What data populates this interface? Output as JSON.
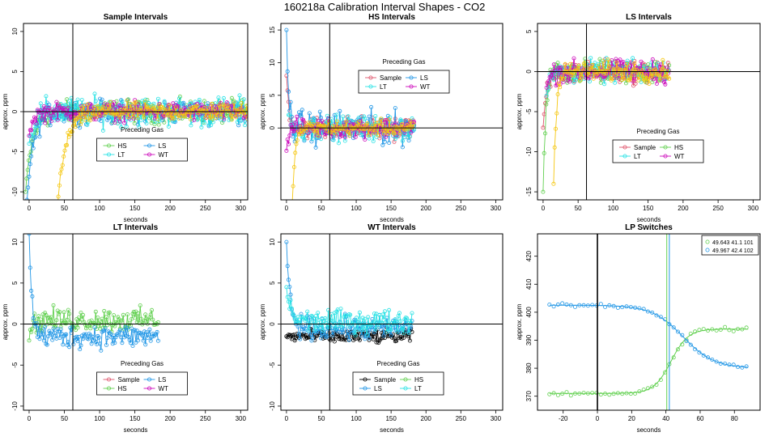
{
  "title": "160218a   Calibration Interval Shapes - CO2",
  "colors": {
    "red": "#DF536B",
    "green": "#61D04F",
    "blue": "#2297E6",
    "cyan": "#28E2E5",
    "magenta": "#CD0BBC",
    "gold": "#F5C710",
    "black": "#000000"
  },
  "chart_data": [
    {
      "type": "line",
      "title": "Sample Intervals",
      "xlabel": "seconds",
      "ylabel": "approx. ppm",
      "xlim": [
        -8,
        310
      ],
      "ylim": [
        -11,
        11
      ],
      "xticks": [
        0,
        50,
        100,
        150,
        200,
        250,
        300
      ],
      "yticks": [
        -10,
        -5,
        0,
        5,
        10
      ],
      "vline": 62,
      "hline": 0,
      "legend": {
        "title": "Preceding Gas",
        "position": "bottom-center",
        "entries": [
          "HS",
          "LS",
          "LT",
          "WT"
        ]
      },
      "series": [
        {
          "name": "HS",
          "color": "green",
          "shape": "settle",
          "start": -5,
          "end": 310,
          "from": -10,
          "tau": 10,
          "noise": 1.0
        },
        {
          "name": "LS",
          "color": "blue",
          "shape": "settle",
          "start": -3,
          "end": 310,
          "from": -11,
          "tau": 9,
          "noise": 1.0
        },
        {
          "name": "LT",
          "color": "cyan",
          "shape": "settle",
          "start": 0,
          "end": 310,
          "from": -4,
          "tau": 8,
          "noise": 1.3
        },
        {
          "name": "WT",
          "color": "magenta",
          "shape": "settle",
          "start": 0,
          "end": 310,
          "from": -3,
          "tau": 6,
          "noise": 0.8
        },
        {
          "name": "",
          "color": "gold",
          "shape": "settle",
          "start": 40,
          "end": 310,
          "from": -12,
          "tau": 12,
          "noise": 0.8
        }
      ]
    },
    {
      "type": "line",
      "title": "HS Intervals",
      "xlabel": "seconds",
      "ylabel": "approx. ppm",
      "xlim": [
        -8,
        310
      ],
      "ylim": [
        -11,
        16
      ],
      "xticks": [
        0,
        50,
        100,
        150,
        200,
        250,
        300
      ],
      "yticks": [
        0,
        5,
        10,
        15
      ],
      "vline": 62,
      "hline": 0,
      "legend": {
        "title": "Preceding Gas",
        "position": "top-center",
        "entries": [
          "Sample",
          "LS",
          "LT",
          "WT"
        ]
      },
      "series": [
        {
          "name": "Sample",
          "color": "red",
          "shape": "drop",
          "start": 0,
          "end": 183,
          "from": 8,
          "tau": 4,
          "noise": 1.2
        },
        {
          "name": "LS",
          "color": "blue",
          "shape": "drop",
          "start": 0,
          "end": 183,
          "from": 15,
          "tau": 3,
          "noise": 1.8
        },
        {
          "name": "LT",
          "color": "cyan",
          "shape": "drop",
          "start": 3,
          "end": 183,
          "from": 2,
          "tau": 3,
          "noise": 1.3
        },
        {
          "name": "WT",
          "color": "magenta",
          "shape": "settle",
          "start": 0,
          "end": 183,
          "from": -3.5,
          "tau": 3,
          "noise": 1.0
        },
        {
          "name": "",
          "color": "gold",
          "shape": "settle",
          "start": 8,
          "end": 183,
          "from": -12,
          "tau": 4,
          "noise": 0.8
        }
      ]
    },
    {
      "type": "line",
      "title": "LS Intervals",
      "xlabel": "seconds",
      "ylabel": "approx. ppm",
      "xlim": [
        -8,
        310
      ],
      "ylim": [
        -16,
        6
      ],
      "xticks": [
        0,
        50,
        100,
        150,
        200,
        250,
        300
      ],
      "yticks": [
        -15,
        -10,
        -5,
        0,
        5
      ],
      "vline": 62,
      "hline": 0,
      "legend": {
        "title": "Preceding Gas",
        "position": "bottom-right",
        "entries": [
          "Sample",
          "HS",
          "LT",
          "WT"
        ]
      },
      "series": [
        {
          "name": "Sample",
          "color": "red",
          "shape": "settle",
          "start": 0,
          "end": 180,
          "from": -7,
          "tau": 6,
          "noise": 1.0
        },
        {
          "name": "HS",
          "color": "green",
          "shape": "settle",
          "start": 0,
          "end": 180,
          "from": -15,
          "tau": 4,
          "noise": 1.0
        },
        {
          "name": "LT",
          "color": "cyan",
          "shape": "settle",
          "start": 5,
          "end": 180,
          "from": -3,
          "tau": 5,
          "noise": 1.0
        },
        {
          "name": "WT",
          "color": "magenta",
          "shape": "settle",
          "start": 5,
          "end": 180,
          "from": -2,
          "tau": 5,
          "noise": 1.0
        },
        {
          "name": "",
          "color": "gold",
          "shape": "settle",
          "start": 15,
          "end": 180,
          "from": -14,
          "tau": 4,
          "noise": 0.9
        }
      ]
    },
    {
      "type": "line",
      "title": "LT Intervals",
      "xlabel": "seconds",
      "ylabel": "approx. ppm",
      "xlim": [
        -8,
        310
      ],
      "ylim": [
        -10.5,
        11
      ],
      "xticks": [
        0,
        50,
        100,
        150,
        200,
        250,
        300
      ],
      "yticks": [
        -10,
        -5,
        0,
        5,
        10
      ],
      "vline": 62,
      "hline": 0,
      "legend": {
        "title": "Preceding Gas",
        "position": "bottom-center",
        "entries": [
          "Sample",
          "LS",
          "HS",
          "WT"
        ]
      },
      "series": [
        {
          "name": "HS",
          "color": "green",
          "shape": "settle",
          "start": 0,
          "end": 183,
          "from": -2,
          "tau": 4,
          "noise": 1.0,
          "level": 0.5
        },
        {
          "name": "LS",
          "color": "blue",
          "shape": "drop",
          "start": 0,
          "end": 183,
          "from": 11,
          "tau": 4,
          "noise": 1.0,
          "level": -1.5
        }
      ]
    },
    {
      "type": "line",
      "title": "WT Intervals",
      "xlabel": "seconds",
      "ylabel": "approx. ppm",
      "xlim": [
        -8,
        310
      ],
      "ylim": [
        -10.5,
        11
      ],
      "xticks": [
        0,
        50,
        100,
        150,
        200,
        250,
        300
      ],
      "yticks": [
        -10,
        -5,
        0,
        5,
        10
      ],
      "vline": 62,
      "hline": 0,
      "legend": {
        "title": "Preceding Gas",
        "position": "bottom-center",
        "entries": [
          "Sample",
          "HS",
          "LS",
          "LT"
        ]
      },
      "series": [
        {
          "name": "Sample",
          "color": "black",
          "shape": "settle",
          "start": 0,
          "end": 180,
          "from": -1.5,
          "tau": 10,
          "noise": 0.6,
          "level": -1.5
        },
        {
          "name": "LS",
          "color": "blue",
          "shape": "drop",
          "start": 0,
          "end": 180,
          "from": 10,
          "tau": 5,
          "noise": 1.0,
          "level": -0.5
        },
        {
          "name": "LT",
          "color": "cyan",
          "shape": "drop",
          "start": 0,
          "end": 180,
          "from": 4.5,
          "tau": 6,
          "noise": 1.0,
          "level": 0.3
        }
      ]
    },
    {
      "type": "scatter",
      "title": "LP Switches",
      "xlabel": "seconds",
      "ylabel": "approx. ppm",
      "xlim": [
        -35,
        95
      ],
      "ylim": [
        365,
        428
      ],
      "xticks": [
        -20,
        0,
        20,
        40,
        60,
        80
      ],
      "yticks": [
        370,
        380,
        390,
        400,
        410,
        420
      ],
      "vline": 0,
      "vlines": [
        {
          "x": 40.5,
          "color": "green"
        },
        {
          "x": 42,
          "color": "blue"
        }
      ],
      "legend": {
        "position": "top-right",
        "entries": [
          "49.643 41.1 101",
          "49.967 42.4 102"
        ]
      },
      "series": [
        {
          "name": "49.643 41.1 101",
          "color": "green",
          "shape": "sigmoid",
          "start": -28,
          "end": 88,
          "step": 2.5,
          "y0": 371,
          "y1": 394,
          "x0": 43,
          "k": 0.2,
          "noise": 0.5
        },
        {
          "name": "49.967 42.4 102",
          "color": "blue",
          "shape": "sigmoid",
          "start": -28,
          "end": 88,
          "step": 2.5,
          "y0": 402.5,
          "y1": 380,
          "x0": 50,
          "k": 0.11,
          "noise": 0.4
        }
      ]
    }
  ]
}
